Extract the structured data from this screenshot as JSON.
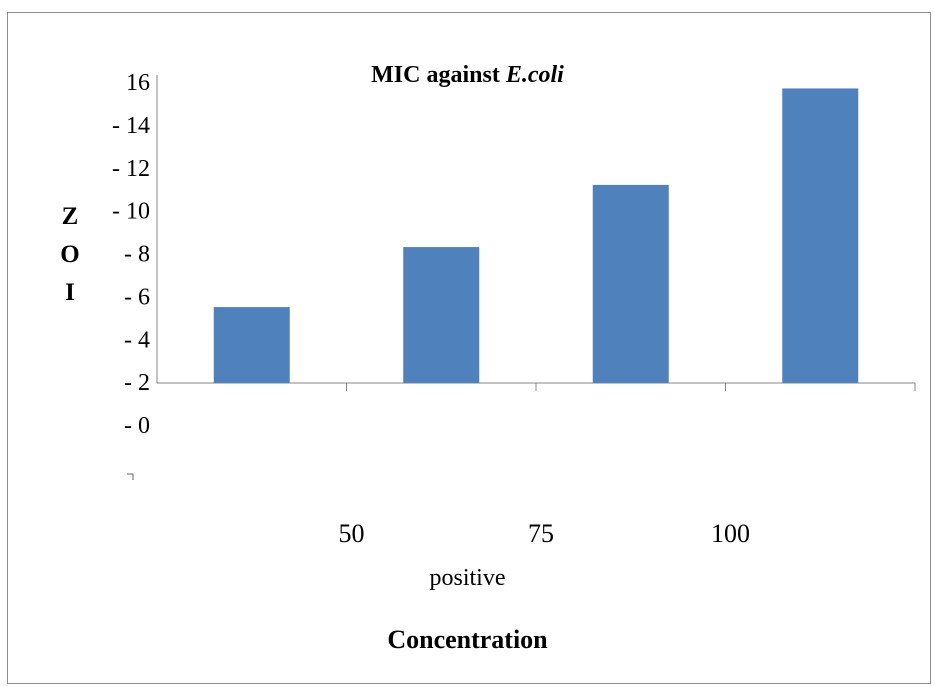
{
  "chart_data": {
    "type": "bar",
    "title": "MIC against ",
    "title_italic": "E.coli",
    "ylabel": [
      "Z",
      "O",
      "I"
    ],
    "xlabel": "Concentration",
    "x_sublabel": "positive",
    "categories": [
      "",
      "50",
      "75",
      "100"
    ],
    "values": [
      5.5,
      8.3,
      11.2,
      15.7
    ],
    "ytick_labels": [
      "- 0",
      "- 2",
      "- 4",
      "- 6",
      "- 8",
      "- 10",
      "- 12",
      "- 14",
      "16"
    ],
    "ylim": [
      0,
      16
    ],
    "grid": false,
    "bar_color": "#4f81bd",
    "axis_color": "#868686"
  }
}
